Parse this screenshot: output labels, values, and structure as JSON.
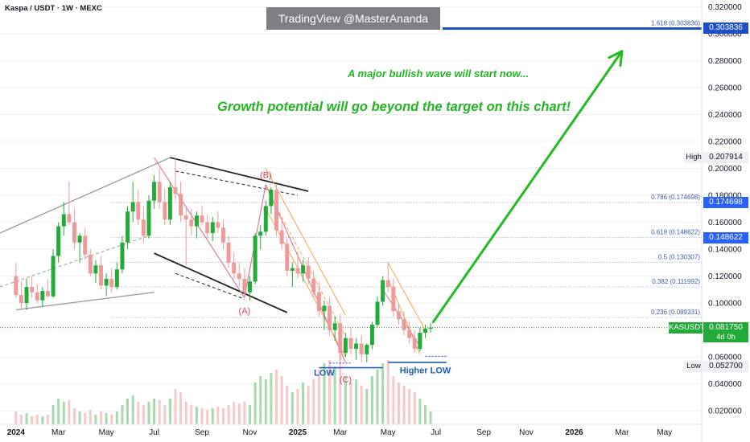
{
  "header": {
    "title": "Kaspa / USDT · 1W · MEXC",
    "watermark": "TradingView @MasterAnanda"
  },
  "annotations": {
    "line1": "A major bullish wave will start now...",
    "line2": "Growth potential will go beyond the target on this chart!"
  },
  "colors": {
    "up": "#22ab38",
    "down": "#ef9a9a",
    "fib_line": "#90a4d4",
    "fib_tag": "#2962ff",
    "target": "#1e4fc8",
    "arrow": "#22bb22",
    "pattern_pink": "#e07090",
    "channel_orange": "#f5a64a",
    "grey_channel": "#9e9e9e",
    "wave_label": "#e0405a",
    "low_label": "#1f5fb8",
    "watermark_bg": "#7d7f84"
  },
  "price_panel": {
    "symbol": "KASUSDT",
    "last_price": "0.081750",
    "countdown": "4d 0h",
    "high_label": "High",
    "high_value": "0.207914",
    "low_label": "Low",
    "low_value": "0.052700"
  },
  "fib_tags": [
    "0.303836",
    "0.174698",
    "0.148622"
  ],
  "chart_data": {
    "type": "candlestick",
    "title": "Kaspa / USDT · 1W · MEXC",
    "xlabel": "",
    "ylabel": "",
    "ylim": [
      0.01,
      0.325
    ],
    "y_ticks": [
      "0.320000",
      "0.300000",
      "0.280000",
      "0.260000",
      "0.240000",
      "0.220000",
      "0.200000",
      "0.180000",
      "0.160000",
      "0.140000",
      "0.120000",
      "0.100000",
      "0.080000",
      "0.060000",
      "0.040000",
      "0.020000"
    ],
    "y_tick_values": [
      0.32,
      0.3,
      0.28,
      0.26,
      0.24,
      0.22,
      0.2,
      0.18,
      0.16,
      0.14,
      0.12,
      0.1,
      0.08,
      0.06,
      0.04,
      0.02
    ],
    "x_ticks": [
      {
        "label": "2024",
        "week": 0
      },
      {
        "label": "Mar",
        "week": 8
      },
      {
        "label": "May",
        "week": 17
      },
      {
        "label": "Jul",
        "week": 26
      },
      {
        "label": "Sep",
        "week": 35
      },
      {
        "label": "Nov",
        "week": 44
      },
      {
        "label": "2025",
        "week": 53
      },
      {
        "label": "Mar",
        "week": 61
      },
      {
        "label": "May",
        "week": 70
      },
      {
        "label": "Jul",
        "week": 79
      },
      {
        "label": "Sep",
        "week": 88
      },
      {
        "label": "Nov",
        "week": 96
      },
      {
        "label": "2026",
        "week": 105
      },
      {
        "label": "Mar",
        "week": 114
      },
      {
        "label": "May",
        "week": 122
      }
    ],
    "week_range": [
      -3,
      129
    ],
    "candles": [
      [
        0.12,
        0.13,
        0.104,
        0.106
      ],
      [
        0.106,
        0.116,
        0.096,
        0.1
      ],
      [
        0.1,
        0.118,
        0.095,
        0.112
      ],
      [
        0.112,
        0.12,
        0.104,
        0.108
      ],
      [
        0.108,
        0.114,
        0.1,
        0.102
      ],
      [
        0.102,
        0.112,
        0.097,
        0.109
      ],
      [
        0.109,
        0.118,
        0.104,
        0.105
      ],
      [
        0.105,
        0.14,
        0.104,
        0.135
      ],
      [
        0.135,
        0.16,
        0.13,
        0.157
      ],
      [
        0.157,
        0.175,
        0.15,
        0.166
      ],
      [
        0.166,
        0.19,
        0.158,
        0.16
      ],
      [
        0.16,
        0.17,
        0.14,
        0.145
      ],
      [
        0.145,
        0.152,
        0.13,
        0.15
      ],
      [
        0.15,
        0.156,
        0.132,
        0.136
      ],
      [
        0.136,
        0.14,
        0.12,
        0.122
      ],
      [
        0.122,
        0.132,
        0.115,
        0.128
      ],
      [
        0.128,
        0.135,
        0.11,
        0.113
      ],
      [
        0.113,
        0.122,
        0.105,
        0.118
      ],
      [
        0.118,
        0.126,
        0.108,
        0.112
      ],
      [
        0.112,
        0.13,
        0.11,
        0.125
      ],
      [
        0.125,
        0.15,
        0.122,
        0.145
      ],
      [
        0.145,
        0.172,
        0.14,
        0.168
      ],
      [
        0.168,
        0.19,
        0.16,
        0.175
      ],
      [
        0.175,
        0.184,
        0.158,
        0.162
      ],
      [
        0.162,
        0.172,
        0.145,
        0.15
      ],
      [
        0.15,
        0.18,
        0.148,
        0.176
      ],
      [
        0.176,
        0.195,
        0.17,
        0.19
      ],
      [
        0.19,
        0.2,
        0.17,
        0.175
      ],
      [
        0.175,
        0.185,
        0.158,
        0.162
      ],
      [
        0.162,
        0.19,
        0.158,
        0.186
      ],
      [
        0.186,
        0.208,
        0.176,
        0.181
      ],
      [
        0.181,
        0.19,
        0.16,
        0.165
      ],
      [
        0.165,
        0.172,
        0.128,
        0.162
      ],
      [
        0.162,
        0.17,
        0.15,
        0.157
      ],
      [
        0.157,
        0.168,
        0.148,
        0.165
      ],
      [
        0.165,
        0.172,
        0.158,
        0.16
      ],
      [
        0.16,
        0.166,
        0.148,
        0.152
      ],
      [
        0.152,
        0.164,
        0.146,
        0.16
      ],
      [
        0.16,
        0.168,
        0.152,
        0.156
      ],
      [
        0.156,
        0.162,
        0.14,
        0.145
      ],
      [
        0.145,
        0.15,
        0.126,
        0.13
      ],
      [
        0.13,
        0.138,
        0.118,
        0.122
      ],
      [
        0.122,
        0.13,
        0.112,
        0.118
      ],
      [
        0.118,
        0.126,
        0.104,
        0.108
      ],
      [
        0.108,
        0.12,
        0.102,
        0.116
      ],
      [
        0.116,
        0.152,
        0.114,
        0.15
      ],
      [
        0.15,
        0.158,
        0.14,
        0.153
      ],
      [
        0.153,
        0.176,
        0.15,
        0.172
      ],
      [
        0.172,
        0.186,
        0.166,
        0.184
      ],
      [
        0.184,
        0.188,
        0.15,
        0.154
      ],
      [
        0.154,
        0.162,
        0.14,
        0.144
      ],
      [
        0.144,
        0.148,
        0.12,
        0.124
      ],
      [
        0.124,
        0.13,
        0.112,
        0.126
      ],
      [
        0.126,
        0.138,
        0.118,
        0.122
      ],
      [
        0.122,
        0.132,
        0.116,
        0.128
      ],
      [
        0.128,
        0.134,
        0.114,
        0.118
      ],
      [
        0.118,
        0.124,
        0.104,
        0.108
      ],
      [
        0.108,
        0.116,
        0.09,
        0.094
      ],
      [
        0.094,
        0.102,
        0.08,
        0.098
      ],
      [
        0.098,
        0.104,
        0.076,
        0.08
      ],
      [
        0.08,
        0.09,
        0.072,
        0.085
      ],
      [
        0.085,
        0.092,
        0.058,
        0.063
      ],
      [
        0.063,
        0.078,
        0.06,
        0.074
      ],
      [
        0.074,
        0.082,
        0.062,
        0.066
      ],
      [
        0.066,
        0.074,
        0.058,
        0.07
      ],
      [
        0.07,
        0.076,
        0.056,
        0.062
      ],
      [
        0.062,
        0.07,
        0.056,
        0.069
      ],
      [
        0.069,
        0.086,
        0.066,
        0.084
      ],
      [
        0.084,
        0.105,
        0.082,
        0.101
      ],
      [
        0.101,
        0.12,
        0.098,
        0.117
      ],
      [
        0.117,
        0.13,
        0.108,
        0.112
      ],
      [
        0.112,
        0.118,
        0.09,
        0.094
      ],
      [
        0.094,
        0.1,
        0.084,
        0.088
      ],
      [
        0.088,
        0.094,
        0.076,
        0.08
      ],
      [
        0.08,
        0.086,
        0.07,
        0.074
      ],
      [
        0.074,
        0.08,
        0.063,
        0.066
      ],
      [
        0.066,
        0.082,
        0.064,
        0.078
      ],
      [
        0.078,
        0.084,
        0.074,
        0.081
      ],
      [
        0.081,
        0.085,
        0.078,
        0.0818
      ]
    ],
    "volumes": [
      8,
      6,
      7,
      5,
      6,
      5,
      6,
      12,
      16,
      14,
      15,
      10,
      8,
      7,
      9,
      6,
      8,
      7,
      6,
      8,
      12,
      16,
      18,
      14,
      12,
      14,
      16,
      15,
      12,
      16,
      22,
      20,
      14,
      12,
      11,
      10,
      9,
      10,
      11,
      10,
      12,
      14,
      13,
      14,
      12,
      26,
      30,
      28,
      32,
      34,
      30,
      24,
      20,
      22,
      26,
      24,
      28,
      34,
      38,
      40,
      36,
      44,
      30,
      26,
      28,
      24,
      22,
      30,
      34,
      38,
      40,
      30,
      26,
      24,
      22,
      20,
      16,
      12,
      8
    ],
    "vol_scale_max": 60,
    "fib_levels": [
      {
        "label": "1.618 (0.303836)",
        "value": 0.303836
      },
      {
        "label": "0.786 (0.174698)",
        "value": 0.174698
      },
      {
        "label": "0.618 (0.148622)",
        "value": 0.148622
      },
      {
        "label": "0.5 (0.130307)",
        "value": 0.130307
      },
      {
        "label": "0.382 (0.111992)",
        "value": 0.111992
      },
      {
        "label": "0.236 (0.089331)",
        "value": 0.089331
      }
    ],
    "wave_labels": [
      {
        "text": "(B)",
        "week": 47,
        "price": 0.193
      },
      {
        "text": "(A)",
        "week": 43,
        "price": 0.092
      },
      {
        "text": "(C)",
        "week": 62,
        "price": 0.041
      }
    ],
    "low_labels": [
      {
        "text": "LOW",
        "week": 58,
        "price": 0.046
      },
      {
        "text": "Higher LOW",
        "week": 77,
        "price": 0.048
      }
    ]
  }
}
